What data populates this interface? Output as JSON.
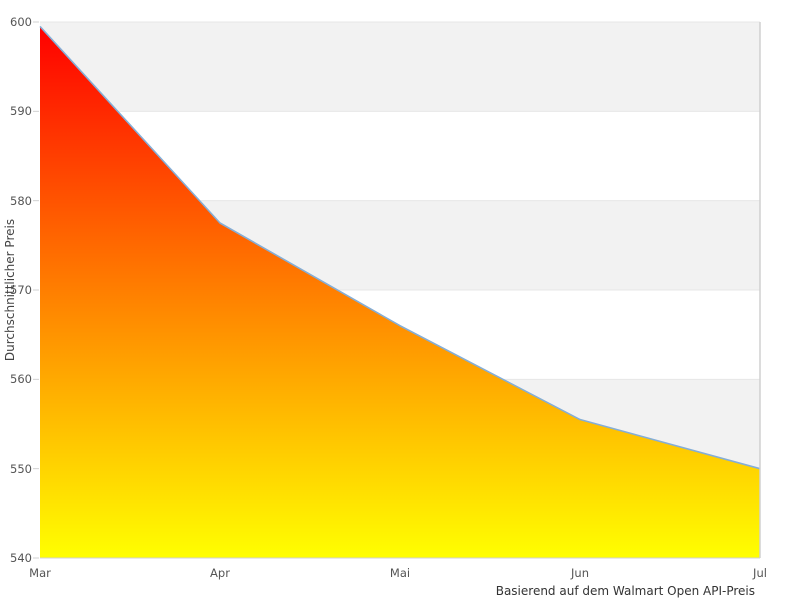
{
  "chart_data": {
    "type": "area",
    "title": "",
    "categories": [
      "Mar",
      "Apr",
      "Mai",
      "Jun",
      "Jul"
    ],
    "values": [
      599.5,
      577.5,
      566,
      555.5,
      550
    ],
    "xlabel": "",
    "ylabel": "Durchschnittlicher Preis",
    "caption": "Basierend auf dem Walmart Open API-Preis",
    "ylim": [
      540,
      600
    ],
    "yticks": [
      540,
      550,
      560,
      570,
      580,
      590,
      600
    ],
    "grid": "horizontal gridlines with alternating shaded bands",
    "legend": "none",
    "colors": {
      "area_gradient_top": "#ff0000",
      "area_gradient_bottom": "#ffff00",
      "line": "#85aed6",
      "band": "#f2f2f2",
      "gridline": "#e7e7e7",
      "axis_line": "#d0d0d0",
      "tick_text": "#555555",
      "axis_title_text": "#444444",
      "caption_text": "#333333",
      "background": "#ffffff"
    }
  }
}
